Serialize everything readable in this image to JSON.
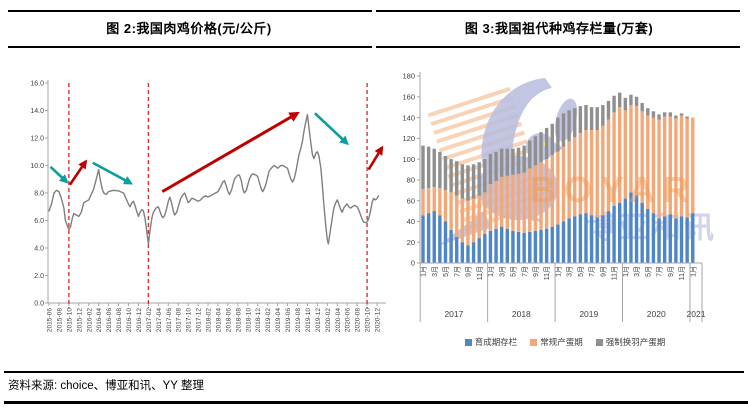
{
  "source_note": "资料来源: choice、博亚和讯、YY 整理",
  "chart_data": [
    {
      "type": "line",
      "title": "图 2:我国肉鸡价格(元/公斤)",
      "ylabel": "",
      "ylim": [
        0,
        16
      ],
      "ytick_step": 2,
      "grid": false,
      "x_unit": "months since 2015-06",
      "x_tick_labels": [
        "2015-06",
        "2015-08",
        "2015-10",
        "2015-12",
        "2016-02",
        "2016-04",
        "2016-06",
        "2016-08",
        "2016-10",
        "2016-12",
        "2017-02",
        "2017-04",
        "2017-06",
        "2017-08",
        "2017-10",
        "2017-12",
        "2018-02",
        "2018-04",
        "2018-06",
        "2018-08",
        "2018-10",
        "2018-12",
        "2019-02",
        "2019-04",
        "2019-06",
        "2019-08",
        "2019-10",
        "2019-12",
        "2020-02",
        "2020-04",
        "2020-06",
        "2020-08",
        "2020-10",
        "2020-12"
      ],
      "series": [
        {
          "name": "肉鸡价格",
          "color": "#7f7f7f",
          "points": [
            [
              0,
              6.7
            ],
            [
              0.5,
              7.2
            ],
            [
              1,
              8.0
            ],
            [
              1.5,
              8.2
            ],
            [
              2,
              8.1
            ],
            [
              2.5,
              7.6
            ],
            [
              3,
              6.9
            ],
            [
              3.3,
              6.0
            ],
            [
              3.7,
              5.6
            ],
            [
              4,
              5.35
            ],
            [
              4.3,
              5.5
            ],
            [
              4.7,
              6.2
            ],
            [
              5,
              6.5
            ],
            [
              5.5,
              6.4
            ],
            [
              6,
              6.3
            ],
            [
              6.5,
              6.6
            ],
            [
              7,
              7.3
            ],
            [
              7.5,
              7.4
            ],
            [
              8,
              7.5
            ],
            [
              8.5,
              7.9
            ],
            [
              9,
              8.3
            ],
            [
              9.5,
              9.0
            ],
            [
              10,
              9.7
            ],
            [
              10.3,
              9.0
            ],
            [
              10.7,
              8.3
            ],
            [
              11,
              8.0
            ],
            [
              11.5,
              7.9
            ],
            [
              12,
              8.1
            ],
            [
              13,
              8.2
            ],
            [
              14,
              8.15
            ],
            [
              15,
              8.0
            ],
            [
              15.5,
              7.6
            ],
            [
              16,
              7.2
            ],
            [
              16.3,
              7.0
            ],
            [
              16.7,
              7.3
            ],
            [
              17,
              7.4
            ],
            [
              17.3,
              7.1
            ],
            [
              17.7,
              6.6
            ],
            [
              18,
              6.3
            ],
            [
              18.3,
              6.6
            ],
            [
              18.7,
              6.8
            ],
            [
              19,
              6.7
            ],
            [
              19.3,
              6.2
            ],
            [
              19.6,
              5.4
            ],
            [
              20,
              4.3
            ],
            [
              20.3,
              5.2
            ],
            [
              20.7,
              6.2
            ],
            [
              21,
              6.6
            ],
            [
              21.5,
              6.9
            ],
            [
              22,
              7.0
            ],
            [
              22.3,
              6.7
            ],
            [
              22.7,
              6.3
            ],
            [
              23,
              6.2
            ],
            [
              23.3,
              6.4
            ],
            [
              23.7,
              6.9
            ],
            [
              24,
              7.4
            ],
            [
              24.3,
              7.7
            ],
            [
              24.7,
              7.2
            ],
            [
              25,
              6.7
            ],
            [
              25.3,
              6.4
            ],
            [
              25.7,
              6.6
            ],
            [
              26,
              7.0
            ],
            [
              26.5,
              7.6
            ],
            [
              27,
              7.9
            ],
            [
              27.3,
              8.0
            ],
            [
              27.7,
              7.6
            ],
            [
              28,
              7.3
            ],
            [
              28.3,
              7.4
            ],
            [
              28.7,
              7.6
            ],
            [
              29,
              7.6
            ],
            [
              29.5,
              7.5
            ],
            [
              30,
              7.4
            ],
            [
              30.5,
              7.5
            ],
            [
              31,
              7.7
            ],
            [
              31.5,
              7.8
            ],
            [
              32,
              7.7
            ],
            [
              32.5,
              7.8
            ],
            [
              33,
              7.9
            ],
            [
              33.5,
              8.0
            ],
            [
              34,
              8.1
            ],
            [
              34.3,
              8.3
            ],
            [
              34.7,
              8.6
            ],
            [
              35,
              8.8
            ],
            [
              35.3,
              8.9
            ],
            [
              35.7,
              8.5
            ],
            [
              36,
              8.1
            ],
            [
              36.3,
              7.9
            ],
            [
              36.7,
              8.2
            ],
            [
              37,
              8.6
            ],
            [
              37.3,
              9.0
            ],
            [
              37.7,
              9.2
            ],
            [
              38,
              9.3
            ],
            [
              38.3,
              9.3
            ],
            [
              38.7,
              8.9
            ],
            [
              39,
              8.3
            ],
            [
              39.3,
              8.0
            ],
            [
              39.7,
              8.2
            ],
            [
              40,
              8.6
            ],
            [
              40.3,
              9.0
            ],
            [
              40.7,
              9.3
            ],
            [
              41,
              9.4
            ],
            [
              41.7,
              9.3
            ],
            [
              42,
              9.2
            ],
            [
              42.3,
              8.8
            ],
            [
              42.7,
              8.3
            ],
            [
              43,
              8.1
            ],
            [
              43.3,
              8.3
            ],
            [
              43.7,
              8.7
            ],
            [
              44,
              9.2
            ],
            [
              44.3,
              9.6
            ],
            [
              44.7,
              9.8
            ],
            [
              45,
              9.9
            ],
            [
              45.3,
              10.0
            ],
            [
              45.7,
              9.9
            ],
            [
              46,
              9.8
            ],
            [
              46.3,
              9.9
            ],
            [
              46.7,
              10.0
            ],
            [
              47,
              10.0
            ],
            [
              47.5,
              9.9
            ],
            [
              48,
              9.8
            ],
            [
              48.3,
              9.4
            ],
            [
              48.7,
              9.0
            ],
            [
              49,
              8.8
            ],
            [
              49.3,
              9.0
            ],
            [
              49.7,
              9.6
            ],
            [
              50,
              10.2
            ],
            [
              50.3,
              10.8
            ],
            [
              50.7,
              11.3
            ],
            [
              51,
              11.8
            ],
            [
              51.3,
              12.5
            ],
            [
              51.7,
              13.2
            ],
            [
              52,
              13.7
            ],
            [
              52.3,
              12.8
            ],
            [
              52.7,
              11.6
            ],
            [
              53,
              10.8
            ],
            [
              53.3,
              10.5
            ],
            [
              53.7,
              10.9
            ],
            [
              54,
              11.0
            ],
            [
              54.3,
              10.7
            ],
            [
              54.7,
              9.8
            ],
            [
              55,
              8.6
            ],
            [
              55.3,
              7.2
            ],
            [
              55.7,
              5.6
            ],
            [
              56,
              4.6
            ],
            [
              56.2,
              4.3
            ],
            [
              56.5,
              5.0
            ],
            [
              57,
              6.2
            ],
            [
              57.3,
              6.9
            ],
            [
              57.7,
              7.3
            ],
            [
              58,
              7.5
            ],
            [
              58.3,
              7.2
            ],
            [
              58.7,
              6.8
            ],
            [
              59,
              6.6
            ],
            [
              59.3,
              6.9
            ],
            [
              59.7,
              7.1
            ],
            [
              60,
              7.2
            ],
            [
              60.3,
              7.0
            ],
            [
              60.7,
              6.9
            ],
            [
              61,
              7.0
            ],
            [
              61.5,
              7.1
            ],
            [
              62,
              7.0
            ],
            [
              62.3,
              6.8
            ],
            [
              62.7,
              6.4
            ],
            [
              63,
              6.1
            ],
            [
              63.3,
              5.9
            ],
            [
              63.7,
              5.85
            ],
            [
              64,
              5.9
            ],
            [
              64.3,
              6.1
            ],
            [
              64.7,
              6.7
            ],
            [
              65,
              7.3
            ],
            [
              65.3,
              7.6
            ],
            [
              65.7,
              7.5
            ],
            [
              66,
              7.6
            ],
            [
              66.3,
              7.8
            ]
          ]
        }
      ],
      "vlines": {
        "color": "#e03131",
        "at_labels": [
          "2015-10",
          "2017-02",
          "2020-10"
        ],
        "at_t": [
          4,
          20,
          64
        ]
      },
      "annotations": {
        "arrow_colors": {
          "teal": "#0d9e9e",
          "red": "#c00000"
        },
        "arrows": [
          {
            "color": "teal",
            "from": [
              0.3,
              9.9
            ],
            "to": [
              3.6,
              8.8
            ],
            "width": 2.6
          },
          {
            "color": "red",
            "from": [
              4.2,
              8.6
            ],
            "to": [
              7.4,
              10.3
            ],
            "width": 2.6
          },
          {
            "color": "teal",
            "from": [
              8.8,
              10.2
            ],
            "to": [
              16.5,
              8.7
            ],
            "width": 2.6
          },
          {
            "color": "red",
            "from": [
              22.8,
              8.1
            ],
            "to": [
              50.0,
              13.8
            ],
            "width": 3.0
          },
          {
            "color": "teal",
            "from": [
              53.5,
              13.8
            ],
            "to": [
              60.0,
              11.6
            ],
            "width": 2.6
          },
          {
            "color": "red",
            "from": [
              64.3,
              9.7
            ],
            "to": [
              67.0,
              11.3
            ],
            "width": 2.6
          }
        ]
      }
    },
    {
      "type": "bar",
      "stacked": true,
      "title": "图 3:我国祖代种鸡存栏量(万套)",
      "ylim": [
        0,
        180
      ],
      "ytick_step": 20,
      "grid": false,
      "legend_position": "bottom",
      "years": [
        "2017",
        "2018",
        "2019",
        "2020",
        "2021"
      ],
      "month_labels_cycle": [
        "1月",
        "3月",
        "5月",
        "7月",
        "9月",
        "11月"
      ],
      "categories_note": "49 monthly bars, 2017-01 to 2021-01",
      "series": [
        {
          "name": "育成期存栏",
          "color": "#4f86c6",
          "values": [
            46,
            48,
            50,
            46,
            40,
            32,
            25,
            20,
            17,
            20,
            24,
            28,
            31,
            33,
            35,
            33,
            31,
            30,
            29,
            30,
            31,
            32,
            33,
            35,
            37,
            40,
            43,
            45,
            47,
            48,
            46,
            44,
            46,
            50,
            55,
            58,
            62,
            68,
            65,
            58,
            52,
            48,
            43,
            45,
            47,
            43,
            45,
            44,
            48
          ]
        },
        {
          "name": "常规产蛋期",
          "color": "#f4a878",
          "values": [
            25,
            24,
            23,
            26,
            30,
            36,
            40,
            42,
            43,
            42,
            41,
            40,
            45,
            46,
            48,
            51,
            54,
            56,
            58,
            61,
            63,
            65,
            67,
            69,
            70,
            72,
            74,
            76,
            78,
            80,
            82,
            84,
            86,
            88,
            90,
            92,
            85,
            84,
            86,
            88,
            90,
            92,
            95,
            96,
            94,
            96,
            97,
            95,
            92
          ]
        },
        {
          "name": "强制换羽产蛋期",
          "color": "#8f8f8f",
          "values": [
            42,
            40,
            37,
            35,
            33,
            32,
            33,
            33,
            34,
            33,
            32,
            32,
            29,
            28,
            27,
            26,
            25,
            25,
            26,
            27,
            28,
            29,
            30,
            30,
            33,
            32,
            30,
            28,
            26,
            24,
            22,
            22,
            20,
            18,
            16,
            14,
            12,
            10,
            9,
            8,
            7,
            6,
            5,
            4,
            4,
            3,
            2,
            2,
            0
          ]
        }
      ],
      "watermark": {
        "text_latin": "BOYAR",
        "text_cn": "博亚和讯"
      }
    }
  ]
}
